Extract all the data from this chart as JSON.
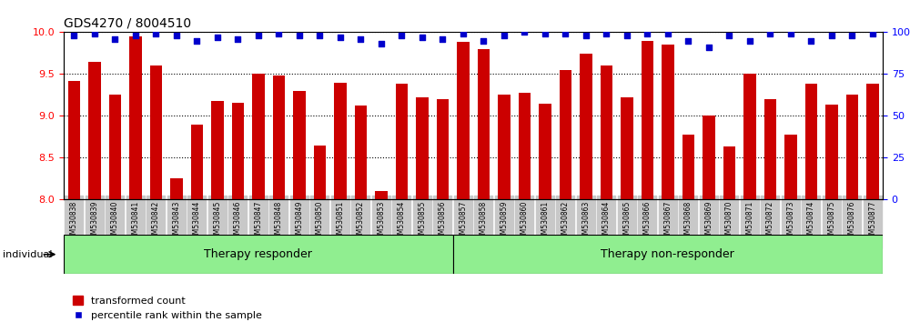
{
  "title": "GDS4270 / 8004510",
  "categories": [
    "GSM530838",
    "GSM530839",
    "GSM530840",
    "GSM530841",
    "GSM530842",
    "GSM530843",
    "GSM530844",
    "GSM530845",
    "GSM530846",
    "GSM530847",
    "GSM530848",
    "GSM530849",
    "GSM530850",
    "GSM530851",
    "GSM530852",
    "GSM530853",
    "GSM530854",
    "GSM530855",
    "GSM530856",
    "GSM530857",
    "GSM530858",
    "GSM530859",
    "GSM530860",
    "GSM530861",
    "GSM530862",
    "GSM530863",
    "GSM530864",
    "GSM530865",
    "GSM530866",
    "GSM530867",
    "GSM530868",
    "GSM530869",
    "GSM530870",
    "GSM530871",
    "GSM530872",
    "GSM530873",
    "GSM530874",
    "GSM530875",
    "GSM530876",
    "GSM530877"
  ],
  "bar_values": [
    9.42,
    9.65,
    9.25,
    9.95,
    9.6,
    8.25,
    8.9,
    9.18,
    9.16,
    9.5,
    9.48,
    9.3,
    8.65,
    9.4,
    9.12,
    8.1,
    9.38,
    9.22,
    9.2,
    9.88,
    9.8,
    9.25,
    9.28,
    9.15,
    9.55,
    9.74,
    9.6,
    9.22,
    9.9,
    9.85,
    8.78,
    9.0,
    8.63,
    9.5,
    9.2,
    8.78,
    9.38,
    9.13,
    9.25,
    9.38
  ],
  "percentile_values": [
    98,
    99,
    96,
    98,
    99,
    98,
    95,
    97,
    96,
    98,
    99,
    98,
    98,
    97,
    96,
    93,
    98,
    97,
    96,
    99,
    95,
    98,
    100,
    99,
    99,
    98,
    99,
    98,
    99,
    99,
    95,
    91,
    98,
    95,
    99,
    99,
    95,
    98,
    98,
    99
  ],
  "group_responder": [
    0,
    19
  ],
  "group_nonresponder": [
    19,
    40
  ],
  "group_labels": [
    "Therapy responder",
    "Therapy non-responder"
  ],
  "bar_color": "#cc0000",
  "percentile_color": "#0000cc",
  "left_ylim": [
    8,
    10
  ],
  "left_yticks": [
    8,
    8.5,
    9,
    9.5,
    10
  ],
  "right_ylim": [
    0,
    100
  ],
  "right_yticks": [
    0,
    25,
    50,
    75,
    100
  ],
  "ylabel_left": "",
  "ylabel_right": "",
  "background_color": "#ffffff",
  "plot_bg_color": "#ffffff",
  "tick_bg_color": "#d0d0d0",
  "group_bg_color": "#90ee90",
  "group_border_color": "#000000",
  "legend_items": [
    "transformed count",
    "percentile rank within the sample"
  ],
  "individual_label": "individual"
}
